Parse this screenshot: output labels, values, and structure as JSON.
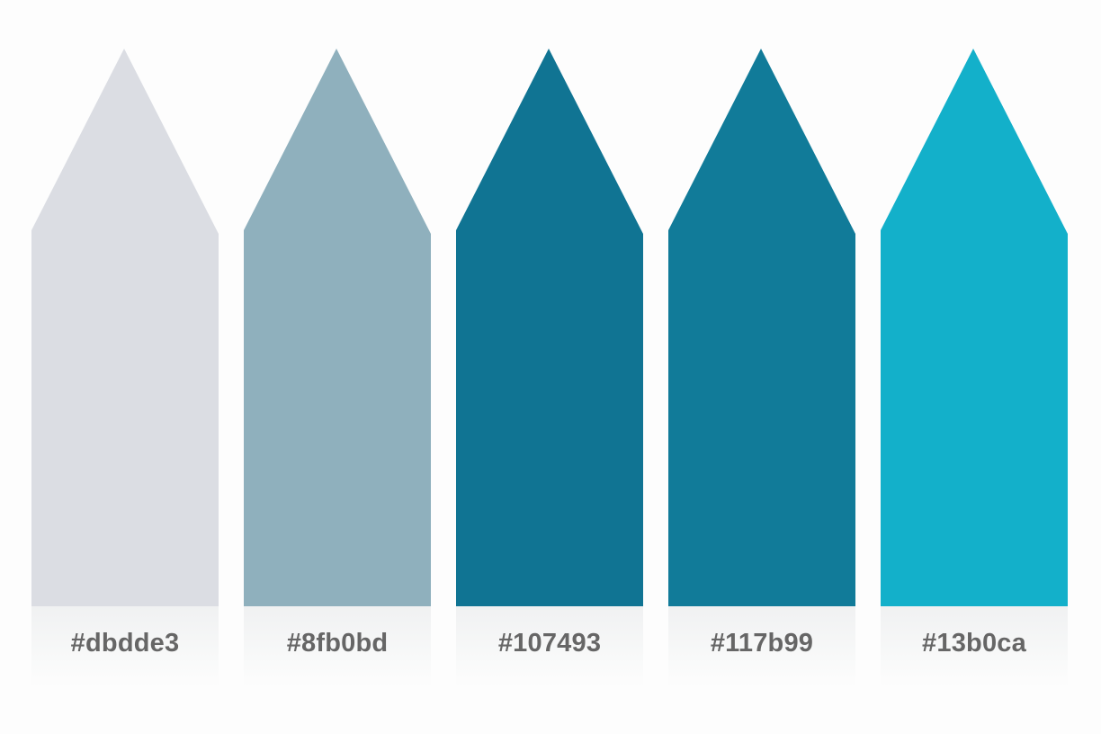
{
  "swatches": [
    {
      "hex_label": "#dbdde3",
      "color": "#dbdde3"
    },
    {
      "hex_label": "#8fb0bd",
      "color": "#8fb0bd"
    },
    {
      "hex_label": "#107493",
      "color": "#107493"
    },
    {
      "hex_label": "#117b99",
      "color": "#117b99"
    },
    {
      "hex_label": "#13b0ca",
      "color": "#13b0ca"
    }
  ],
  "colors": {
    "background": "#fdfdfd",
    "label_text": "#666666"
  }
}
